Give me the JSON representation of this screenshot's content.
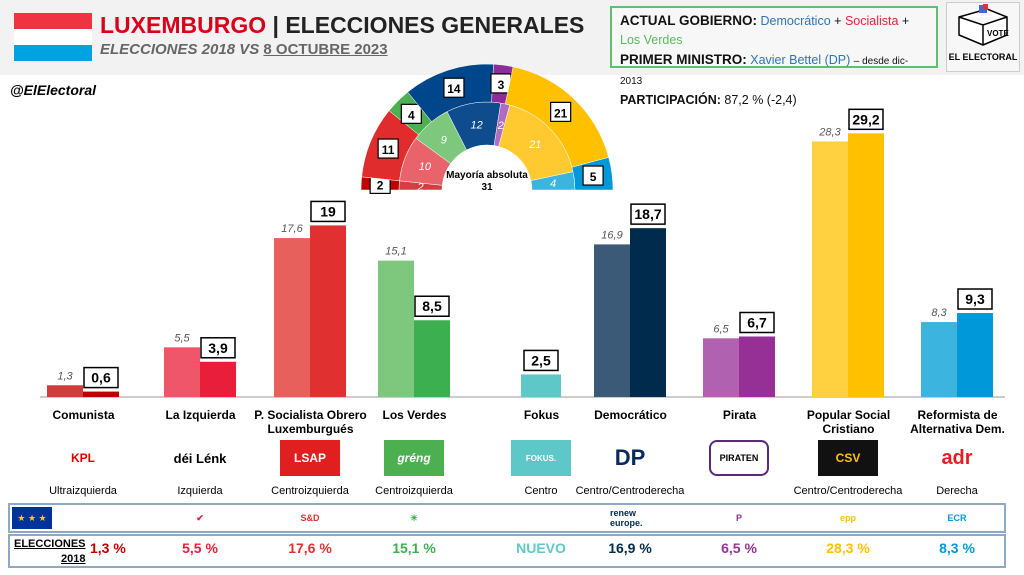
{
  "header": {
    "country": "LUXEMBURGO",
    "title": "| ELECCIONES GENERALES",
    "subtitle_a": "ELECCIONES 2018 VS ",
    "subtitle_b": "8 OCTUBRE 2023",
    "handle": "@ElElectoral"
  },
  "gov": {
    "l1": "ACTUAL GOBIERNO:",
    "p1": "Democrático",
    "plus": "+",
    "p2": "Socialista",
    "p3": "Los Verdes",
    "l2": "PRIMER MINISTRO:",
    "pm": "Xavier Bettel (DP)",
    "since": "– desde dic-2013",
    "l3": "PARTICIPACIÓN:",
    "turnout": "87,2 % (-2,4)"
  },
  "logo": {
    "vote": "VOTE",
    "name": "EL ELECTORAL"
  },
  "chart_data": {
    "type": "bar",
    "title": "Luxemburgo elecciones generales 2018 vs 2023",
    "categories": [
      "Comunista",
      "La Izquierda",
      "P. Socialista Obrero Luxemburgués",
      "Los Verdes",
      "Fokus",
      "Democrático",
      "Pirata",
      "Popular Social Cristiano",
      "Reformista de Alternativa Dem."
    ],
    "series": [
      {
        "name": "2018",
        "values": [
          1.3,
          5.5,
          17.6,
          15.1,
          null,
          16.9,
          6.5,
          28.3,
          8.3
        ]
      },
      {
        "name": "2023",
        "values": [
          0.6,
          3.9,
          19,
          8.5,
          2.5,
          18.7,
          6.7,
          29.2,
          9.3
        ]
      }
    ],
    "labels2018": [
      "1,3",
      "5,5",
      "17,6",
      "15,1",
      "",
      "16,9",
      "6,5",
      "28,3",
      "8,3"
    ],
    "labels2023": [
      "0,6",
      "3,9",
      "19",
      "8,5",
      "2,5",
      "18,7",
      "6,7",
      "29,2",
      "9,3"
    ],
    "colors2018": [
      "#d03c3c",
      "#f0566a",
      "#e8605c",
      "#7dc87d",
      "#5ec8c8",
      "#3b5a78",
      "#b062b0",
      "#ffd040",
      "#3cb4e0"
    ],
    "colors2023": [
      "#c00000",
      "#e81e3a",
      "#e03030",
      "#3cb050",
      "#5ec8c8",
      "#002b4d",
      "#963096",
      "#ffc000",
      "#0098d8"
    ],
    "ylim": [
      0,
      30
    ],
    "seats": {
      "parties": [
        "La Izquierda",
        "LSAP",
        "Los Verdes",
        "Democrático",
        "Pirata",
        "CSV",
        "ADR"
      ],
      "s2018": [
        2,
        10,
        9,
        12,
        2,
        21,
        4
      ],
      "s2023": [
        2,
        11,
        4,
        14,
        3,
        21,
        5
      ],
      "majority_label": "Mayoría absoluta",
      "majority": "31"
    }
  },
  "parties": [
    {
      "label": "Comunista",
      "logo": "KPL",
      "ideo": "Ultraizquierda",
      "pct2018": "1,3 %",
      "eg": ""
    },
    {
      "label": "La Izquierda",
      "logo": "déi Lénk",
      "ideo": "Izquierda",
      "pct2018": "5,5 %",
      "eg": "✔"
    },
    {
      "label": "P. Socialista Obrero Luxemburgués",
      "logo": "LSAP",
      "ideo": "Centroizquierda",
      "pct2018": "17,6 %",
      "eg": "S&D"
    },
    {
      "label": "Los Verdes",
      "logo": "gréng",
      "ideo": "Centroizquierda",
      "pct2018": "15,1 %",
      "eg": "☀"
    },
    {
      "label": "Fokus",
      "logo": "FOKUS.",
      "ideo": "Centro",
      "pct2018": "NUEVO",
      "eg": ""
    },
    {
      "label": "Democrático",
      "logo": "DP",
      "ideo": "Centro/Centroderecha",
      "pct2018": "16,9 %",
      "eg": "renew europe."
    },
    {
      "label": "Pirata",
      "logo": "PIRATEN",
      "ideo": "",
      "pct2018": "6,5 %",
      "eg": "P"
    },
    {
      "label": "Popular Social Cristiano",
      "logo": "CSV",
      "ideo": "Centro/Centroderecha",
      "pct2018": "28,3 %",
      "eg": "epp"
    },
    {
      "label": "Reformista de Alternativa Dem.",
      "logo": "adr",
      "ideo": "Derecha",
      "pct2018": "8,3 %",
      "eg": "ECR"
    }
  ],
  "footer": {
    "e18a": "ELECCIONES",
    "e18b": "2018"
  }
}
